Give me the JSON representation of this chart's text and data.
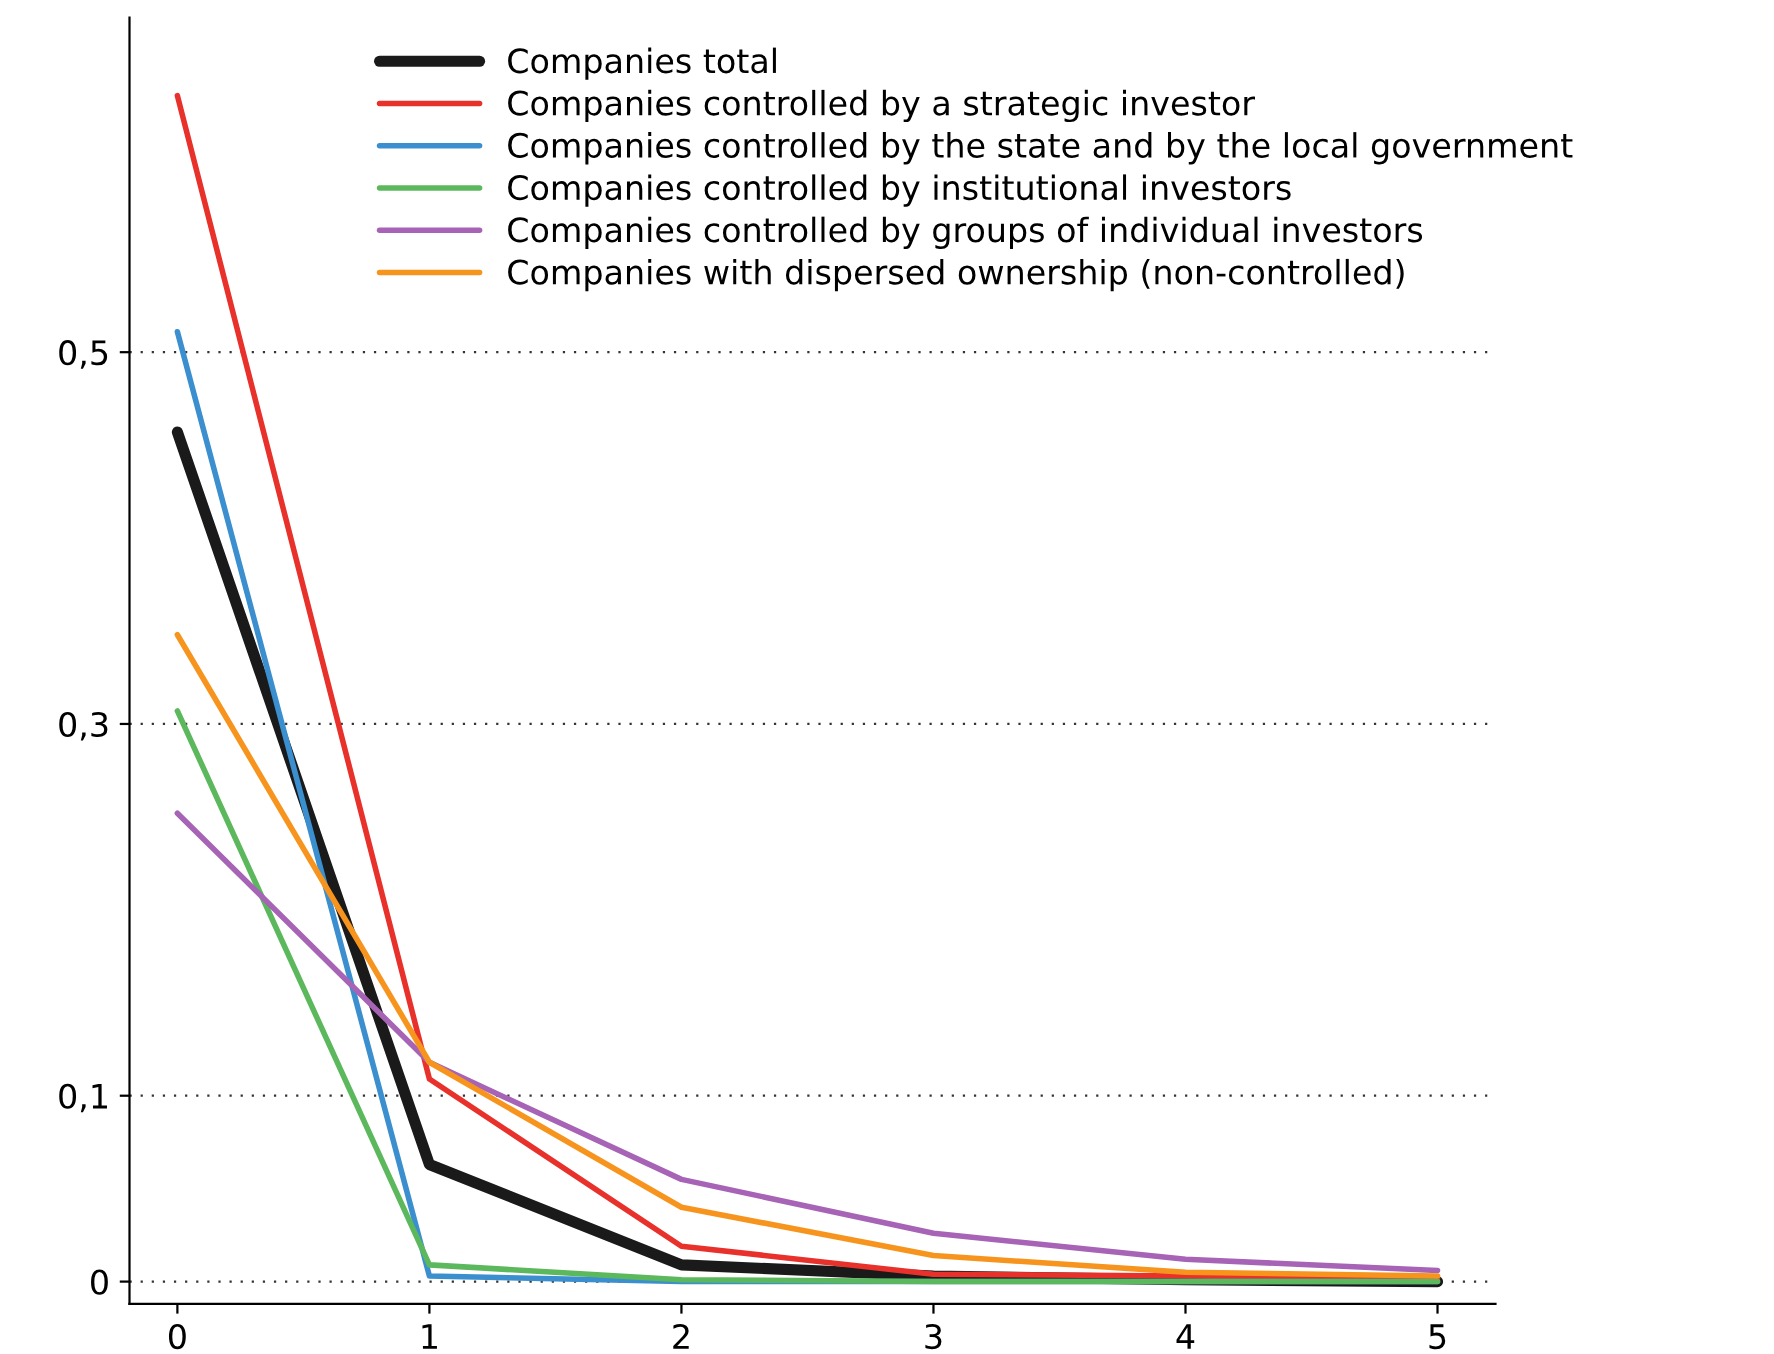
{
  "chart_data": {
    "type": "line",
    "x": [
      0,
      1,
      2,
      3,
      4,
      5
    ],
    "series": [
      {
        "name": "Companies total",
        "color": "#1a1a1a",
        "values": [
          0.457,
          0.063,
          0.009,
          0.003,
          0.001,
          0.0
        ]
      },
      {
        "name": "Companies controlled by a strategic investor",
        "color": "#e8312a",
        "values": [
          0.638,
          0.109,
          0.019,
          0.004,
          0.003,
          0.002
        ]
      },
      {
        "name": "Companies controlled by the state and by the local government",
        "color": "#3b8fcf",
        "values": [
          0.511,
          0.003,
          0.0,
          0.0,
          0.0,
          0.0
        ]
      },
      {
        "name": "Companies controlled by institutional investors",
        "color": "#5cb85c",
        "values": [
          0.307,
          0.009,
          0.001,
          0.0,
          0.0,
          0.0
        ]
      },
      {
        "name": "Companies controlled by groups of individual investors",
        "color": "#a763b5",
        "values": [
          0.252,
          0.118,
          0.055,
          0.026,
          0.012,
          0.006
        ]
      },
      {
        "name": "Companies with dispersed ownership (non-controlled)",
        "color": "#f7941d",
        "values": [
          0.348,
          0.118,
          0.04,
          0.014,
          0.005,
          0.003
        ]
      }
    ],
    "xlim": [
      -0.19,
      5.23
    ],
    "ylim": [
      -0.012,
      0.68
    ],
    "xticks": [
      0,
      1,
      2,
      3,
      4,
      5
    ],
    "yticks": [
      {
        "value": 0,
        "label": "0"
      },
      {
        "value": 0.1,
        "label": "0,1"
      },
      {
        "value": 0.3,
        "label": "0,3"
      },
      {
        "value": 0.5,
        "label": "0,5"
      }
    ],
    "grid": "y",
    "legend": "top",
    "line_style": "solid",
    "marker": "none"
  }
}
